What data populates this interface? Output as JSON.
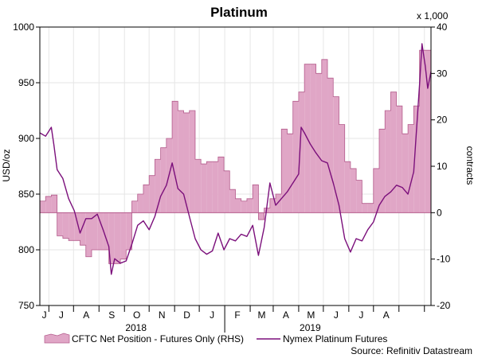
{
  "chart_data": {
    "type": "line",
    "title": "Platinum",
    "ylabel_left": "USD/oz",
    "ylabel_right": "contracts",
    "right_multiplier": "x 1,000",
    "ylim_left": [
      750,
      1000
    ],
    "ylim_right": [
      -20,
      40
    ],
    "yticks_left": [
      "750",
      "800",
      "850",
      "900",
      "950",
      "1000"
    ],
    "yticks_right": [
      "-20",
      "-10",
      "0",
      "10",
      "20",
      "30",
      "40"
    ],
    "x_months": [
      "J",
      "J",
      "A",
      "S",
      "O",
      "N",
      "D",
      "J",
      "F",
      "M",
      "A",
      "M",
      "J",
      "J",
      "A"
    ],
    "x_years": [
      "2018",
      "2019"
    ],
    "grid": true,
    "legend_position": "bottom",
    "source": "Source: Refinitiv Datastream",
    "colors": {
      "area": "#e0a6c6",
      "area_edge": "#b45b8c",
      "line": "#7b0f7b",
      "grid": "#e6e6e6"
    },
    "x_start": "2018-05-21",
    "series": [
      {
        "name": "CFTC Net Position - Futures Only (RHS)",
        "kind": "area",
        "axis": "right",
        "points": [
          [
            "2018-05-21",
            2.5
          ],
          [
            "2018-05-28",
            3.5
          ],
          [
            "2018-06-04",
            3.8
          ],
          [
            "2018-06-11",
            -5
          ],
          [
            "2018-06-18",
            -5.5
          ],
          [
            "2018-06-25",
            -6
          ],
          [
            "2018-07-02",
            -6
          ],
          [
            "2018-07-09",
            -7
          ],
          [
            "2018-07-16",
            -9.5
          ],
          [
            "2018-07-23",
            -8
          ],
          [
            "2018-07-30",
            -8
          ],
          [
            "2018-08-06",
            -8
          ],
          [
            "2018-08-13",
            -11
          ],
          [
            "2018-08-20",
            -11
          ],
          [
            "2018-08-27",
            -10
          ],
          [
            "2018-09-03",
            -8
          ],
          [
            "2018-09-10",
            2.5
          ],
          [
            "2018-09-17",
            4
          ],
          [
            "2018-09-24",
            6
          ],
          [
            "2018-10-01",
            8
          ],
          [
            "2018-10-08",
            11.5
          ],
          [
            "2018-10-15",
            14
          ],
          [
            "2018-10-22",
            16
          ],
          [
            "2018-10-29",
            24
          ],
          [
            "2018-11-05",
            22
          ],
          [
            "2018-11-12",
            21.5
          ],
          [
            "2018-11-19",
            22
          ],
          [
            "2018-11-26",
            11.5
          ],
          [
            "2018-12-03",
            10.5
          ],
          [
            "2018-12-10",
            11
          ],
          [
            "2018-12-17",
            11
          ],
          [
            "2018-12-24",
            12
          ],
          [
            "2018-12-31",
            9
          ],
          [
            "2019-01-07",
            5
          ],
          [
            "2019-01-14",
            3
          ],
          [
            "2019-01-21",
            2.5
          ],
          [
            "2019-01-28",
            3
          ],
          [
            "2019-02-04",
            6
          ],
          [
            "2019-02-11",
            -1.5
          ],
          [
            "2019-02-18",
            1
          ],
          [
            "2019-02-25",
            3
          ],
          [
            "2019-03-04",
            4
          ],
          [
            "2019-03-11",
            18
          ],
          [
            "2019-03-18",
            17
          ],
          [
            "2019-03-25",
            24
          ],
          [
            "2019-04-01",
            26
          ],
          [
            "2019-04-08",
            32
          ],
          [
            "2019-04-15",
            32
          ],
          [
            "2019-04-22",
            30
          ],
          [
            "2019-04-29",
            33
          ],
          [
            "2019-05-06",
            29
          ],
          [
            "2019-05-13",
            25
          ],
          [
            "2019-05-20",
            19
          ],
          [
            "2019-05-27",
            11
          ],
          [
            "2019-06-03",
            9.5
          ],
          [
            "2019-06-10",
            7
          ],
          [
            "2019-06-17",
            2
          ],
          [
            "2019-06-24",
            2
          ],
          [
            "2019-07-01",
            9.5
          ],
          [
            "2019-07-08",
            18
          ],
          [
            "2019-07-15",
            22
          ],
          [
            "2019-07-22",
            26
          ],
          [
            "2019-07-29",
            23
          ],
          [
            "2019-08-05",
            17
          ],
          [
            "2019-08-12",
            19
          ],
          [
            "2019-08-19",
            23
          ],
          [
            "2019-08-26",
            35
          ],
          [
            "2019-09-02",
            35
          ]
        ]
      },
      {
        "name": "Nymex Platinum Futures",
        "kind": "line",
        "axis": "left",
        "points": [
          [
            "2018-05-21",
            905
          ],
          [
            "2018-05-28",
            902
          ],
          [
            "2018-06-04",
            910
          ],
          [
            "2018-06-07",
            895
          ],
          [
            "2018-06-11",
            872
          ],
          [
            "2018-06-18",
            864
          ],
          [
            "2018-06-25",
            846
          ],
          [
            "2018-07-02",
            835
          ],
          [
            "2018-07-09",
            815
          ],
          [
            "2018-07-16",
            828
          ],
          [
            "2018-07-23",
            828
          ],
          [
            "2018-07-30",
            832
          ],
          [
            "2018-08-06",
            818
          ],
          [
            "2018-08-13",
            803
          ],
          [
            "2018-08-16",
            778
          ],
          [
            "2018-08-20",
            792
          ],
          [
            "2018-08-27",
            788
          ],
          [
            "2018-09-03",
            790
          ],
          [
            "2018-09-10",
            805
          ],
          [
            "2018-09-17",
            822
          ],
          [
            "2018-09-24",
            826
          ],
          [
            "2018-10-01",
            818
          ],
          [
            "2018-10-08",
            830
          ],
          [
            "2018-10-15",
            848
          ],
          [
            "2018-10-22",
            858
          ],
          [
            "2018-10-29",
            878
          ],
          [
            "2018-11-05",
            855
          ],
          [
            "2018-11-12",
            850
          ],
          [
            "2018-11-19",
            830
          ],
          [
            "2018-11-26",
            810
          ],
          [
            "2018-12-03",
            800
          ],
          [
            "2018-12-10",
            796
          ],
          [
            "2018-12-17",
            799
          ],
          [
            "2018-12-24",
            815
          ],
          [
            "2018-12-31",
            800
          ],
          [
            "2019-01-07",
            810
          ],
          [
            "2019-01-14",
            808
          ],
          [
            "2019-01-21",
            814
          ],
          [
            "2019-01-28",
            812
          ],
          [
            "2019-02-04",
            822
          ],
          [
            "2019-02-11",
            795
          ],
          [
            "2019-02-18",
            820
          ],
          [
            "2019-02-25",
            860
          ],
          [
            "2019-03-04",
            840
          ],
          [
            "2019-03-11",
            846
          ],
          [
            "2019-03-18",
            852
          ],
          [
            "2019-03-25",
            860
          ],
          [
            "2019-04-01",
            868
          ],
          [
            "2019-04-04",
            910
          ],
          [
            "2019-04-08",
            905
          ],
          [
            "2019-04-15",
            895
          ],
          [
            "2019-04-22",
            887
          ],
          [
            "2019-04-29",
            880
          ],
          [
            "2019-05-06",
            878
          ],
          [
            "2019-05-13",
            860
          ],
          [
            "2019-05-20",
            840
          ],
          [
            "2019-05-27",
            810
          ],
          [
            "2019-06-03",
            798
          ],
          [
            "2019-06-10",
            810
          ],
          [
            "2019-06-17",
            808
          ],
          [
            "2019-06-24",
            818
          ],
          [
            "2019-07-01",
            825
          ],
          [
            "2019-07-08",
            840
          ],
          [
            "2019-07-15",
            848
          ],
          [
            "2019-07-22",
            852
          ],
          [
            "2019-07-29",
            858
          ],
          [
            "2019-08-05",
            856
          ],
          [
            "2019-08-12",
            850
          ],
          [
            "2019-08-19",
            870
          ],
          [
            "2019-08-26",
            948
          ],
          [
            "2019-08-29",
            985
          ],
          [
            "2019-09-02",
            965
          ],
          [
            "2019-09-05",
            945
          ],
          [
            "2019-09-09",
            960
          ]
        ]
      }
    ]
  }
}
